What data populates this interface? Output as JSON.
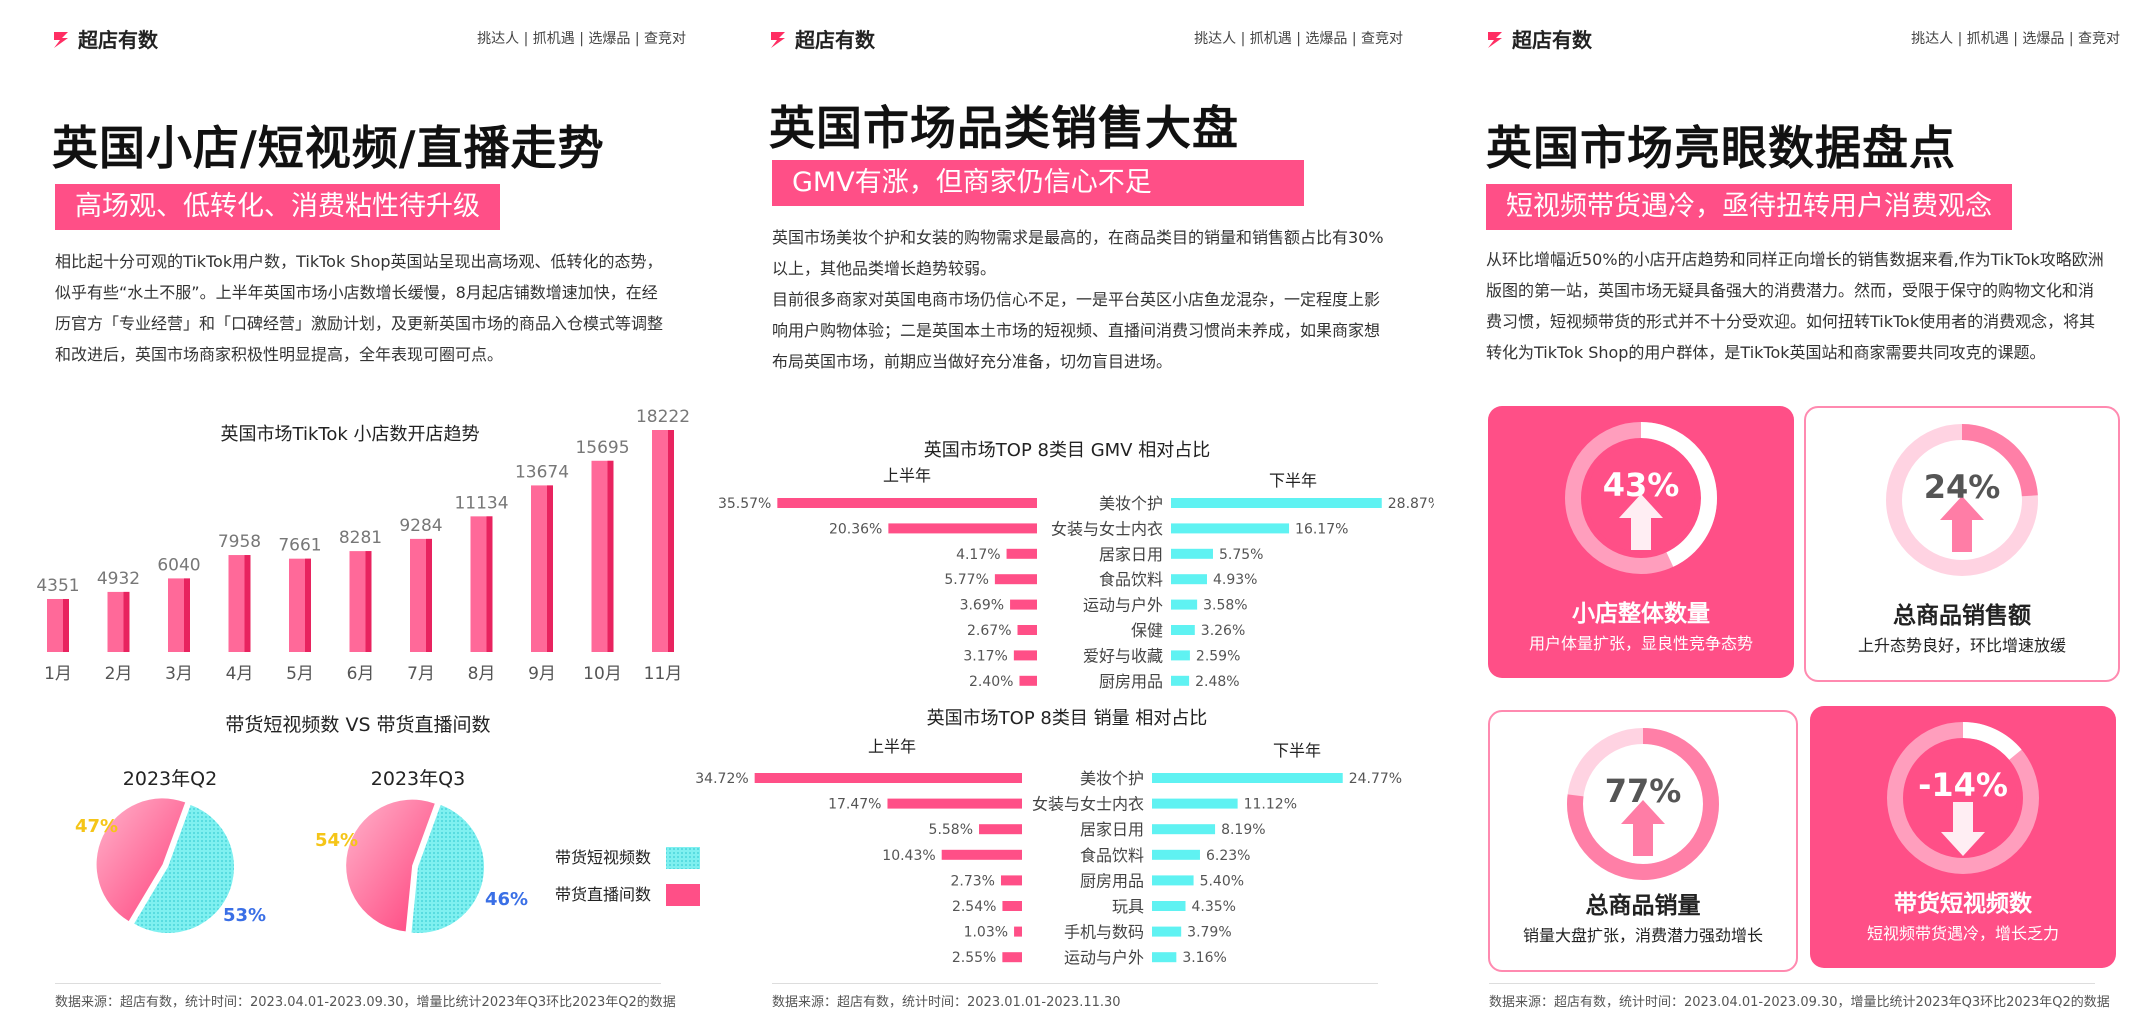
{
  "brand": "超店有数",
  "nav": "挑达人 | 抓机遇 | 选爆品 | 查竞对",
  "colors": {
    "pink": "#ff4f87",
    "cyan": "#5ff2f2",
    "yellow": "#f5c518",
    "blue": "#3a6fe6"
  },
  "panel1": {
    "title": "英国小店/短视频/直播走势",
    "subtitle": "高场观、低转化、消费粘性待升级",
    "paragraph": "相比起十分可观的TikTok用户数，TikTok Shop英国站呈现出高场观、低转化的态势，似乎有些“水土不服”。上半年英国市场小店数增长缓慢，8月起店铺数增速加快，在经历官方「专业经营」和「口碑经营」激励计划，及更新英国市场的商品入仓模式等调整和改进后，英国市场商家积极性明显提高，全年表现可圈可点。",
    "bar_title": "英国市场TikTok 小店数开店趋势",
    "pie_section_title": "带货短视频数 VS 带货直播间数",
    "pie1_title": "2023年Q2",
    "pie2_title": "2023年Q3",
    "legend_video": "带货短视频数",
    "legend_live": "带货直播间数",
    "footer": "数据来源：超店有数，统计时间：2023.04.01-2023.09.30，增量比统计2023年Q3环比2023年Q2的数据"
  },
  "panel2": {
    "title": "英国市场品类销售大盘",
    "subtitle": "GMV有涨，但商家仍信心不足",
    "paragraph1": "英国市场美妆个护和女装的购物需求是最高的，在商品类目的销量和销售额占比有30%以上，其他品类增长趋势较弱。",
    "paragraph2": "目前很多商家对英国电商市场仍信心不足，一是平台英区小店鱼龙混杂，一定程度上影响用户购物体验；二是英国本土市场的短视频、直播间消费习惯尚未养成，如果商家想布局英国市场，前期应当做好充分准备，切勿盲目进场。",
    "gmv_title": "英国市场TOP 8类目 GMV 相对占比",
    "vol_title": "英国市场TOP 8类目 销量 相对占比",
    "left_label": "上半年",
    "right_label": "下半年",
    "footer": "数据来源：超店有数，统计时间：2023.01.01-2023.11.30"
  },
  "panel3": {
    "title": "英国市场亮眼数据盘点",
    "subtitle": "短视频带货遇冷，亟待扭转用户消费观念",
    "paragraph": "从环比增幅近50%的小店开店趋势和同样正向增长的销售数据来看,作为TikTok攻略欧洲版图的第一站，英国市场无疑具备强大的消费潜力。然而，受限于保守的购物文化和消费习惯，短视频带货的形式并不十分受欢迎。如何扭转TikTok使用者的消费观念，将其转化为TikTok Shop的用户群体，是TikTok英国站和商家需要共同攻克的课题。",
    "cards": [
      {
        "value": "43%",
        "title": "小店整体数量",
        "sub": "用户体量扩张，显良性竞争态势",
        "style": "pink",
        "dir": "up",
        "level": 0.43
      },
      {
        "value": "24%",
        "title": "总商品销售额",
        "sub": "上升态势良好，环比增速放缓",
        "style": "white",
        "dir": "up",
        "level": 0.24
      },
      {
        "value": "77%",
        "title": "总商品销量",
        "sub": "销量大盘扩张，消费潜力强劲增长",
        "style": "white",
        "dir": "up",
        "level": 0.77
      },
      {
        "value": "-14%",
        "title": "带货短视频数",
        "sub": "短视频带货遇冷，增长乏力",
        "style": "pink",
        "dir": "down",
        "level": 0.14
      }
    ],
    "footer": "数据来源：超店有数，统计时间：2023.04.01-2023.09.30，增量比统计2023年Q3环比2023年Q2的数据"
  },
  "chart_data": [
    {
      "type": "bar",
      "title": "英国市场TikTok 小店数开店趋势",
      "categories": [
        "1月",
        "2月",
        "3月",
        "4月",
        "5月",
        "6月",
        "7月",
        "8月",
        "9月",
        "10月",
        "11月"
      ],
      "values": [
        4351,
        4932,
        6040,
        7958,
        7661,
        8281,
        9284,
        11134,
        13674,
        15695,
        18222
      ],
      "xlabel": "",
      "ylabel": "",
      "grid": false
    },
    {
      "type": "pie",
      "title": "2023年Q2",
      "slices": [
        {
          "name": "带货短视频数",
          "value": 53
        },
        {
          "name": "带货直播间数",
          "value": 47
        }
      ]
    },
    {
      "type": "pie",
      "title": "2023年Q3",
      "slices": [
        {
          "name": "带货短视频数",
          "value": 46
        },
        {
          "name": "带货直播间数",
          "value": 54
        }
      ]
    },
    {
      "type": "bar",
      "title": "英国市场TOP 8类目 GMV 相对占比",
      "categories": [
        "美妆个护",
        "女装与女士内衣",
        "居家日用",
        "食品饮料",
        "运动与户外",
        "保健",
        "爱好与收藏",
        "厨房用品"
      ],
      "series": [
        {
          "name": "上半年",
          "values": [
            35.57,
            20.36,
            4.17,
            5.77,
            3.69,
            2.67,
            3.17,
            2.4
          ]
        },
        {
          "name": "下半年",
          "values": [
            28.87,
            16.17,
            5.75,
            4.93,
            3.58,
            3.26,
            2.59,
            2.48
          ]
        }
      ]
    },
    {
      "type": "bar",
      "title": "英国市场TOP 8类目 销量 相对占比",
      "categories": [
        "美妆个护",
        "女装与女士内衣",
        "居家日用",
        "食品饮料",
        "厨房用品",
        "玩具",
        "手机与数码",
        "运动与户外"
      ],
      "series": [
        {
          "name": "上半年",
          "values": [
            34.72,
            17.47,
            5.58,
            10.43,
            2.73,
            2.54,
            1.03,
            2.55
          ]
        },
        {
          "name": "下半年",
          "values": [
            24.77,
            11.12,
            8.19,
            6.23,
            5.4,
            4.35,
            3.79,
            3.16
          ]
        }
      ]
    }
  ]
}
